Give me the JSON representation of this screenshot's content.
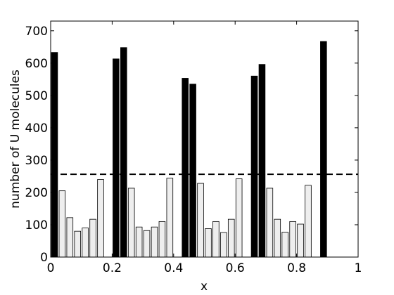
{
  "chart_data": {
    "type": "bar",
    "title": "",
    "xlabel": "x",
    "ylabel": "number of U molecules",
    "xlim": [
      0,
      1
    ],
    "ylim": [
      0,
      730
    ],
    "xticks": [
      0,
      0.2,
      0.4,
      0.6,
      0.8,
      1
    ],
    "xtick_labels": [
      "0",
      "0.2",
      "0.4",
      "0.6",
      "0.8",
      "1"
    ],
    "yticks": [
      0,
      100,
      200,
      300,
      400,
      500,
      600,
      700
    ],
    "ytick_labels": [
      "0",
      "100",
      "200",
      "300",
      "400",
      "500",
      "600",
      "700"
    ],
    "grid": false,
    "reference_line": {
      "y": 256,
      "style": "dashed"
    },
    "bin_width": 0.025,
    "x": [
      0.0125,
      0.0375,
      0.0625,
      0.0875,
      0.1125,
      0.1375,
      0.1625,
      0.1875,
      0.2125,
      0.2375,
      0.2625,
      0.2875,
      0.3125,
      0.3375,
      0.3625,
      0.3875,
      0.4125,
      0.4375,
      0.4625,
      0.4875,
      0.5125,
      0.5375,
      0.5625,
      0.5875,
      0.6125,
      0.6375,
      0.6625,
      0.6875,
      0.7125,
      0.7375,
      0.7625,
      0.7875,
      0.8125,
      0.8375,
      0.8625,
      0.8875,
      0.9125,
      0.9375,
      0.9625,
      0.9875
    ],
    "values": [
      633,
      205,
      122,
      80,
      90,
      117,
      240,
      0,
      613,
      648,
      213,
      93,
      82,
      93,
      110,
      244,
      0,
      553,
      535,
      228,
      88,
      110,
      76,
      117,
      242,
      0,
      560,
      596,
      213,
      117,
      77,
      110,
      102,
      222,
      0,
      667,
      0,
      0,
      0,
      0
    ],
    "fill": [
      "#000000",
      "#eeeeee",
      "#eeeeee",
      "#eeeeee",
      "#eeeeee",
      "#eeeeee",
      "#eeeeee",
      "#eeeeee",
      "#000000",
      "#000000",
      "#eeeeee",
      "#eeeeee",
      "#eeeeee",
      "#eeeeee",
      "#eeeeee",
      "#eeeeee",
      "#eeeeee",
      "#000000",
      "#000000",
      "#eeeeee",
      "#eeeeee",
      "#eeeeee",
      "#eeeeee",
      "#eeeeee",
      "#eeeeee",
      "#eeeeee",
      "#000000",
      "#000000",
      "#eeeeee",
      "#eeeeee",
      "#eeeeee",
      "#eeeeee",
      "#eeeeee",
      "#eeeeee",
      "#eeeeee",
      "#000000",
      "#eeeeee",
      "#eeeeee",
      "#eeeeee",
      "#eeeeee"
    ]
  }
}
